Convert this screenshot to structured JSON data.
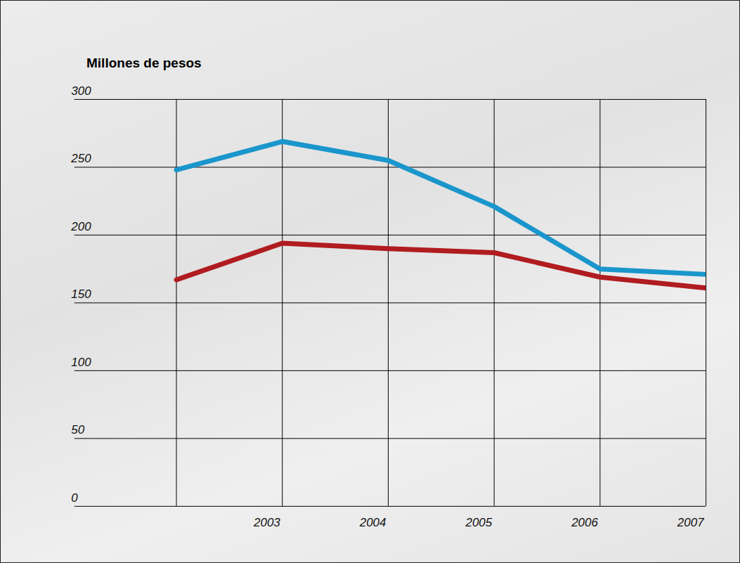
{
  "chart_data": {
    "type": "line",
    "title": "Millones de pesos",
    "categories": [
      null,
      "2003",
      "2004",
      "2005",
      "2006",
      "2007"
    ],
    "series": [
      {
        "color": "#1a96cc",
        "values": [
          248,
          269,
          255,
          221,
          175,
          171
        ]
      },
      {
        "color": "#b01c20",
        "values": [
          167,
          194,
          190,
          187,
          169,
          161
        ]
      }
    ],
    "ylim": [
      0,
      300
    ],
    "yticks": [
      0,
      50,
      100,
      150,
      200,
      250,
      300
    ],
    "grid": true
  }
}
